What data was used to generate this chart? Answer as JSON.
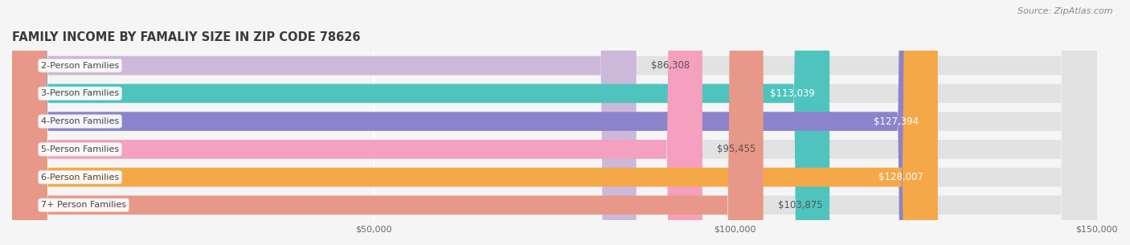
{
  "title": "FAMILY INCOME BY FAMALIY SIZE IN ZIP CODE 78626",
  "source": "Source: ZipAtlas.com",
  "categories": [
    "2-Person Families",
    "3-Person Families",
    "4-Person Families",
    "5-Person Families",
    "6-Person Families",
    "7+ Person Families"
  ],
  "values": [
    86308,
    113039,
    127394,
    95455,
    128007,
    103875
  ],
  "bar_colors": [
    "#ccb8d8",
    "#4fc4be",
    "#8b84cc",
    "#f4a0be",
    "#f5a847",
    "#e89888"
  ],
  "label_colors": [
    "#555555",
    "#ffffff",
    "#ffffff",
    "#555555",
    "#ffffff",
    "#555555"
  ],
  "label_inside": [
    false,
    true,
    true,
    false,
    true,
    false
  ],
  "background_color": "#f5f5f5",
  "bar_bg_color": "#e2e2e2",
  "xlim": [
    0,
    150000
  ],
  "xticks": [
    50000,
    100000,
    150000
  ],
  "xtick_labels": [
    "$50,000",
    "$100,000",
    "$150,000"
  ],
  "bar_height": 0.68,
  "label_fontsize": 8.5,
  "title_fontsize": 10.5,
  "source_fontsize": 8,
  "category_fontsize": 8
}
